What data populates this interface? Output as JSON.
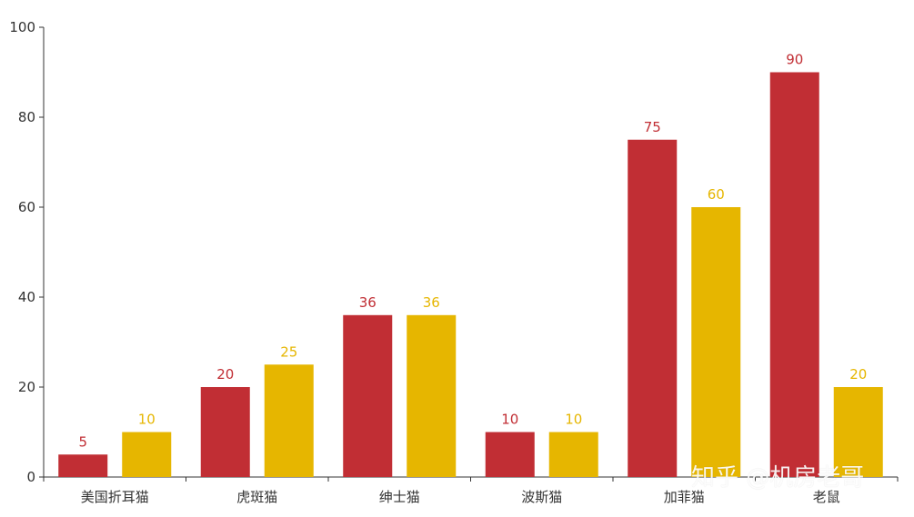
{
  "chart_data": {
    "type": "bar",
    "categories": [
      "美国折耳猫",
      "虎斑猫",
      "绅士猫",
      "波斯猫",
      "加菲猫",
      "老鼠"
    ],
    "series": [
      {
        "values": [
          5,
          20,
          36,
          10,
          75,
          90
        ],
        "color": "#c12e34"
      },
      {
        "values": [
          10,
          25,
          36,
          10,
          60,
          20
        ],
        "color": "#e6b600"
      }
    ],
    "ylim": [
      0,
      100
    ],
    "yticks": [
      0,
      20,
      40,
      60,
      80,
      100
    ],
    "grid": false,
    "legend": "none"
  },
  "watermark": {
    "text": "知乎 @机房老哥"
  }
}
